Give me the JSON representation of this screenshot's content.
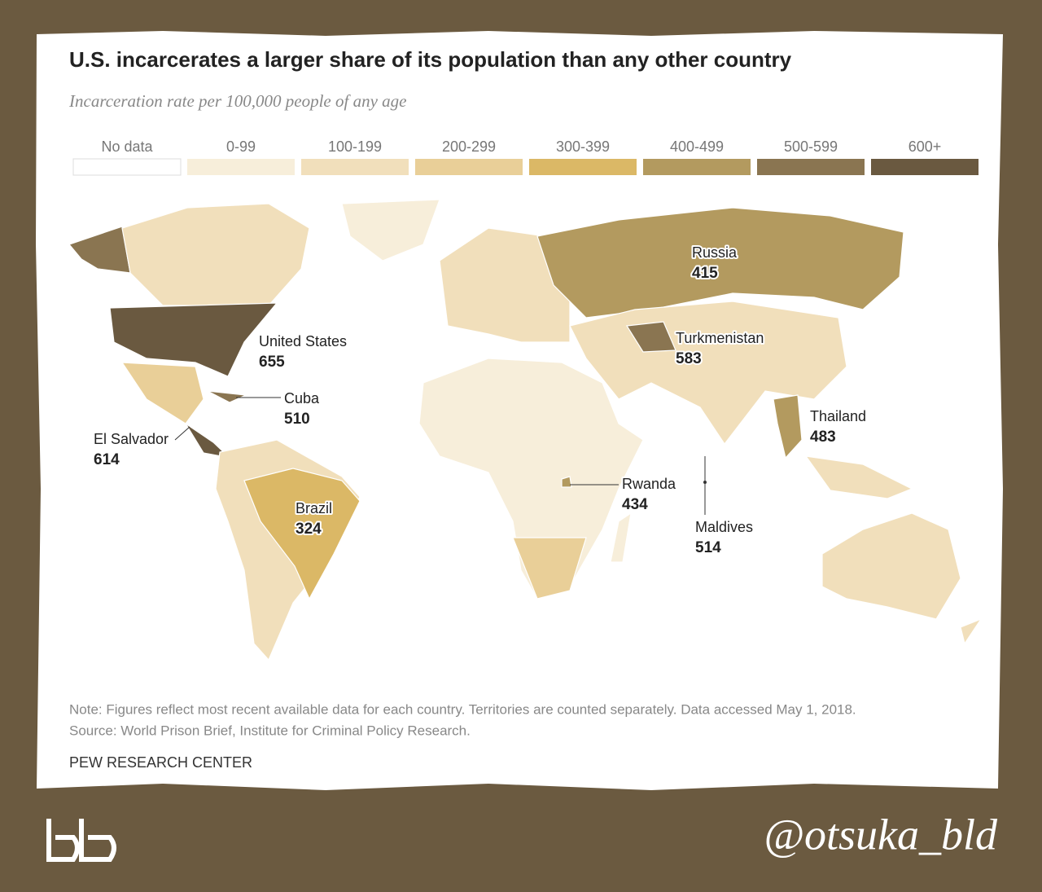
{
  "header": {
    "title": "U.S. incarcerates a larger share of its population than any other country",
    "subtitle": "Incarceration rate per 100,000 people of any age"
  },
  "legend": [
    {
      "label": "No data",
      "color": "#ffffff"
    },
    {
      "label": "0-99",
      "color": "#f7eeda"
    },
    {
      "label": "100-199",
      "color": "#f1dfbb"
    },
    {
      "label": "200-299",
      "color": "#e9cf98"
    },
    {
      "label": "300-399",
      "color": "#dbb866"
    },
    {
      "label": "400-499",
      "color": "#b39a5f"
    },
    {
      "label": "500-599",
      "color": "#8a7551"
    },
    {
      "label": "600+",
      "color": "#6a5940"
    }
  ],
  "labels": [
    {
      "name": "United States",
      "value": 655
    },
    {
      "name": "Cuba",
      "value": 510
    },
    {
      "name": "El Salvador",
      "value": 614
    },
    {
      "name": "Brazil",
      "value": 324
    },
    {
      "name": "Russia",
      "value": 415
    },
    {
      "name": "Turkmenistan",
      "value": 583
    },
    {
      "name": "Thailand",
      "value": 483
    },
    {
      "name": "Rwanda",
      "value": 434
    },
    {
      "name": "Maldives",
      "value": 514
    }
  ],
  "footer": {
    "note": "Note: Figures reflect most recent available data for each country. Territories are counted separately. Data accessed May 1, 2018.",
    "source": "Source: World Prison Brief, Institute for Criminal Policy Research.",
    "credit": "PEW RESEARCH CENTER"
  },
  "watermark": "@otsuka_bld"
}
